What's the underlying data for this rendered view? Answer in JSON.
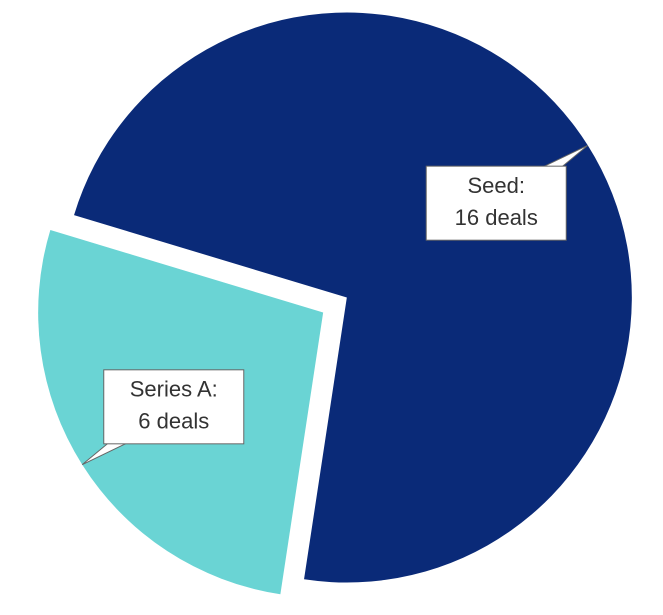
{
  "chart_data": {
    "type": "pie",
    "categories": [
      "Seed:",
      "Series A:"
    ],
    "values": [
      16,
      6
    ],
    "value_labels": [
      "16 deals",
      "6 deals"
    ],
    "colors": [
      "#0a2a78",
      "#6ad4d4"
    ]
  }
}
